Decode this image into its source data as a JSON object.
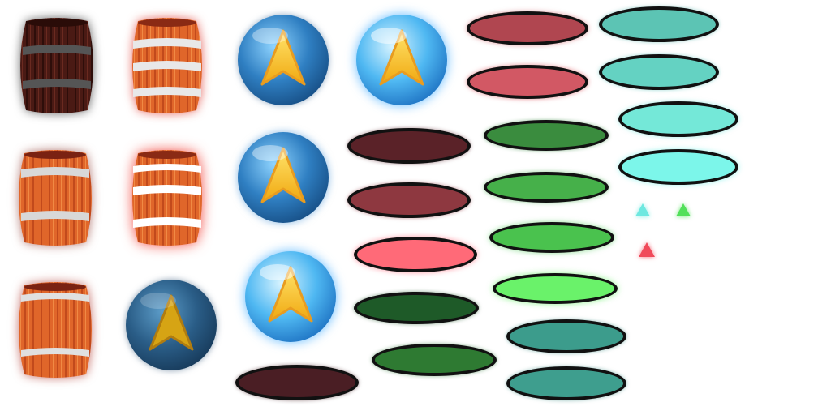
{
  "sheet": {
    "background": "#ffffff",
    "palette": {
      "barrel_wood": "#e0662a",
      "barrel_wood_dark": "#5a1e18",
      "barrel_band": "#e8e8e8",
      "orb_blue": "#2f7fc2",
      "orb_blue_bright": "#5cc4f5",
      "orb_dark": "#2a5d87",
      "arrow_yellow": "#f4c21a",
      "pill_maroon_dark": "#4a1e24",
      "pill_maroon": "#8e3840",
      "pill_red": "#c8505c",
      "pill_pink": "#ff6a78",
      "pill_green_dark": "#1e5a28",
      "pill_green": "#3a8c3e",
      "pill_green_light": "#4ac24e",
      "pill_green_bright": "#6af26a",
      "pill_teal_dark": "#3c9c8c",
      "pill_teal": "#5cc4b4",
      "pill_aqua": "#7cf0e4",
      "tri_cyan": "#6ee8e0",
      "tri_green": "#52e05a",
      "tri_red": "#f04a5a"
    },
    "sprites": [
      {
        "kind": "barrel",
        "variant": "dark",
        "icon": "barrel-icon"
      },
      {
        "kind": "barrel",
        "variant": "red-glow",
        "icon": "barrel-icon"
      },
      {
        "kind": "barrel",
        "variant": "normal",
        "icon": "barrel-icon"
      },
      {
        "kind": "barrel",
        "variant": "bright",
        "icon": "barrel-icon"
      },
      {
        "kind": "barrel",
        "variant": "normal",
        "icon": "barrel-icon"
      },
      {
        "kind": "orb",
        "variant": "normal",
        "icon": "arrow-orb-icon"
      },
      {
        "kind": "orb",
        "variant": "bright",
        "icon": "arrow-orb-icon"
      },
      {
        "kind": "orb",
        "variant": "normal",
        "icon": "arrow-orb-icon"
      },
      {
        "kind": "orb",
        "variant": "dark",
        "icon": "arrow-orb-icon"
      },
      {
        "kind": "orb",
        "variant": "bright",
        "icon": "arrow-orb-icon"
      },
      {
        "kind": "pill",
        "color": "pill_red"
      },
      {
        "kind": "pill",
        "color": "pill_red"
      },
      {
        "kind": "pill",
        "color": "pill_maroon_dark"
      },
      {
        "kind": "pill",
        "color": "pill_maroon"
      },
      {
        "kind": "pill",
        "color": "pill_pink"
      },
      {
        "kind": "pill",
        "color": "pill_maroon_dark"
      },
      {
        "kind": "pill",
        "color": "pill_green_dark"
      },
      {
        "kind": "pill",
        "color": "pill_green"
      },
      {
        "kind": "pill",
        "color": "pill_green"
      },
      {
        "kind": "pill",
        "color": "pill_green_light"
      },
      {
        "kind": "pill",
        "color": "pill_green_light"
      },
      {
        "kind": "pill",
        "color": "pill_green_bright"
      },
      {
        "kind": "pill",
        "color": "pill_teal"
      },
      {
        "kind": "pill",
        "color": "pill_teal"
      },
      {
        "kind": "pill",
        "color": "pill_aqua"
      },
      {
        "kind": "pill",
        "color": "pill_aqua"
      },
      {
        "kind": "pill",
        "color": "pill_teal_dark"
      },
      {
        "kind": "pill",
        "color": "pill_teal_dark"
      },
      {
        "kind": "triangle",
        "color": "tri_cyan"
      },
      {
        "kind": "triangle",
        "color": "tri_green"
      },
      {
        "kind": "triangle",
        "color": "tri_red"
      }
    ]
  }
}
